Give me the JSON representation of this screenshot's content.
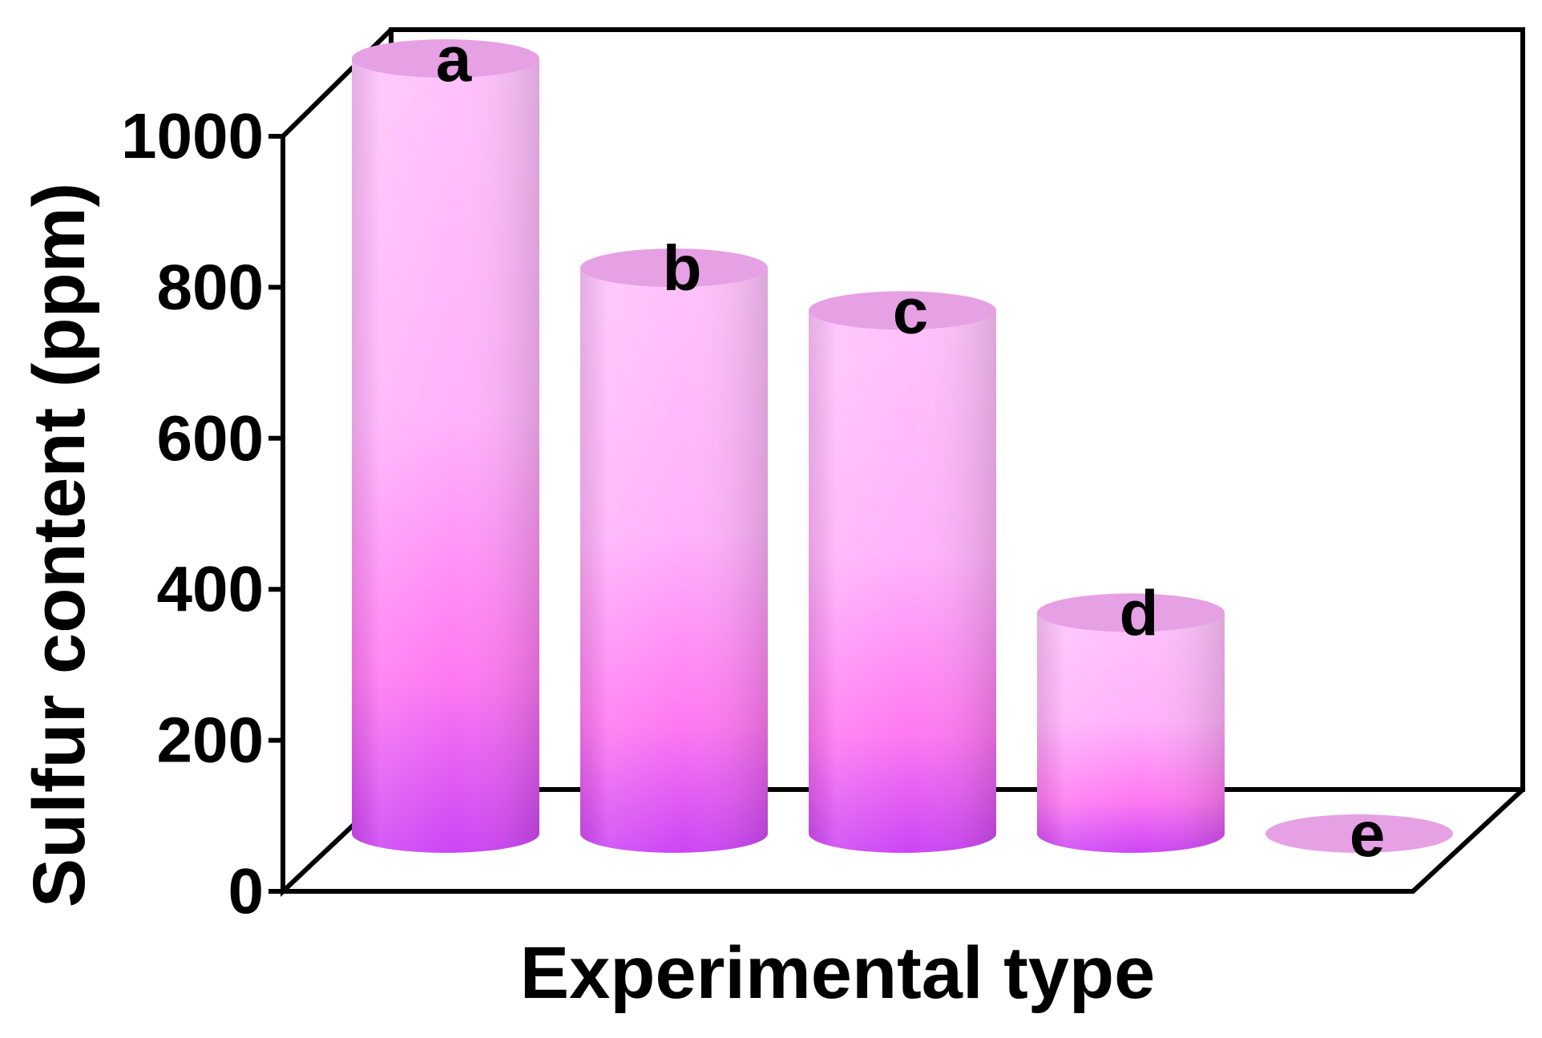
{
  "chart_data": {
    "type": "bar",
    "style": "3d-cylinder",
    "categories": [
      "a",
      "b",
      "c",
      "d",
      "e"
    ],
    "values": [
      1000,
      730,
      675,
      285,
      0
    ],
    "xlabel": "Experimental type",
    "ylabel": "Sulfur content (ppm)",
    "ylim": [
      0,
      1000
    ],
    "yticks": [
      0,
      200,
      400,
      600,
      800,
      1000
    ],
    "ytick_labels": [
      "0",
      "200",
      "400",
      "600",
      "800",
      "1000"
    ],
    "grid": false,
    "legend": "none",
    "colors": {
      "bar_top_light": "#ffc2fc",
      "bar_mid": "#ff7cf3",
      "bar_bottom": "#cc44f4",
      "cap_fill": "#e6a0e4",
      "frame": "#000000"
    }
  }
}
